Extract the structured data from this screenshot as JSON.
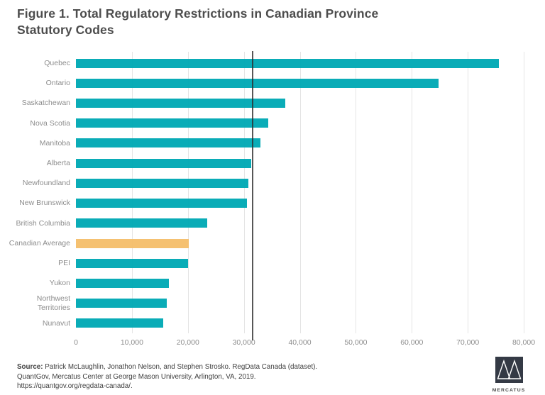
{
  "title": "Figure 1. Total Regulatory Restrictions in Canadian Province Statutory Codes",
  "chart_data": {
    "type": "bar",
    "orientation": "horizontal",
    "title": "Figure 1. Total Regulatory Restrictions in Canadian Province Statutory Codes",
    "categories": [
      "Quebec",
      "Ontario",
      "Saskatchewan",
      "Nova Scotia",
      "Manitoba",
      "Alberta",
      "Newfoundland",
      "New Brunswick",
      "British Columbia",
      "Canadian Average",
      "PEI",
      "Yukon",
      "Northwest\nTerritories",
      "Nunavut"
    ],
    "values": [
      75600,
      64800,
      37400,
      34400,
      33000,
      31300,
      30800,
      30600,
      23500,
      20200,
      20000,
      16600,
      16200,
      15600
    ],
    "highlight_index": 9,
    "xlim": [
      0,
      80000
    ],
    "xtick_labels": [
      "0",
      "10,000",
      "20,000",
      "30,000",
      "40,000",
      "50,000",
      "60,000",
      "70,000",
      "80,000"
    ],
    "reference_line": 31400,
    "grid": "vertical-light",
    "legend": "none",
    "xlabel": "",
    "ylabel": "",
    "colors": {
      "bar": "#00a9b4",
      "highlight": "#f5be6b",
      "gridline": "#e4e4e4",
      "reference_line": "#2d2d2d",
      "tick_text": "#8d8d8d",
      "title_text": "#4d4d4d"
    }
  },
  "source": {
    "label": "Source:",
    "line1_rest": "Patrick McLaughlin, Jonathon Nelson, and Stephen Strosko. RegData Canada (dataset).",
    "line2": "QuantGov, Mercatus Center at George Mason University,  Arlington, VA, 2019.",
    "line3": "https://quantgov.org/regdata-canada/."
  },
  "logo": {
    "text": "MERCATUS",
    "square_color": "#343a45"
  }
}
